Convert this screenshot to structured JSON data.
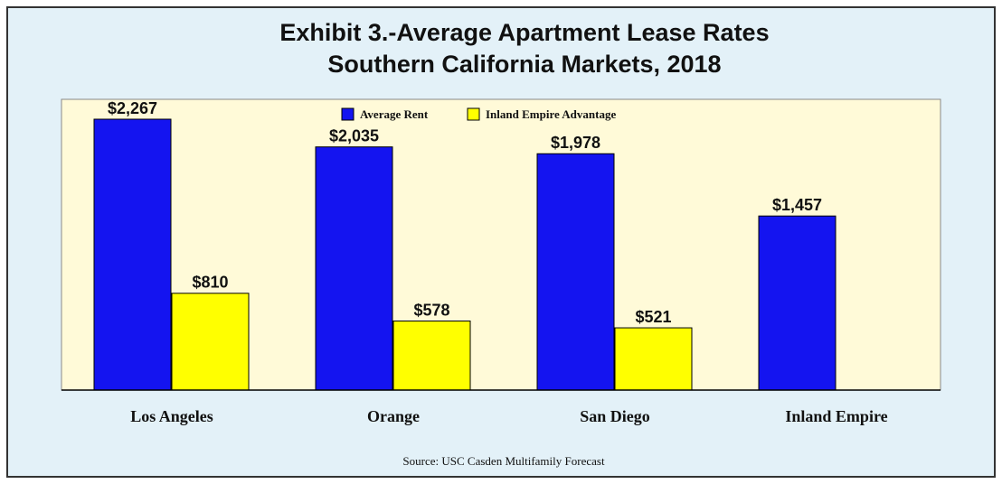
{
  "chart_data": {
    "type": "bar",
    "title": "Exhibit 3.-Average Apartment Lease Rates",
    "subtitle": "Southern California Markets, 2018",
    "categories": [
      "Los Angeles",
      "Orange",
      "San Diego",
      "Inland Empire"
    ],
    "series": [
      {
        "name": "Average Rent",
        "color": "#1414f0",
        "values": [
          2267,
          2035,
          1978,
          1457
        ],
        "value_labels": [
          "$2,267",
          "$2,035",
          "$1,978",
          "$1,457"
        ]
      },
      {
        "name": "Inland Empire Advantage",
        "color": "#ffff00",
        "values": [
          810,
          578,
          521,
          null
        ],
        "value_labels": [
          "$810",
          "$578",
          "$521",
          null
        ]
      }
    ],
    "legend": "top",
    "source": "Source:  USC Casden Multifamily Forecast"
  }
}
